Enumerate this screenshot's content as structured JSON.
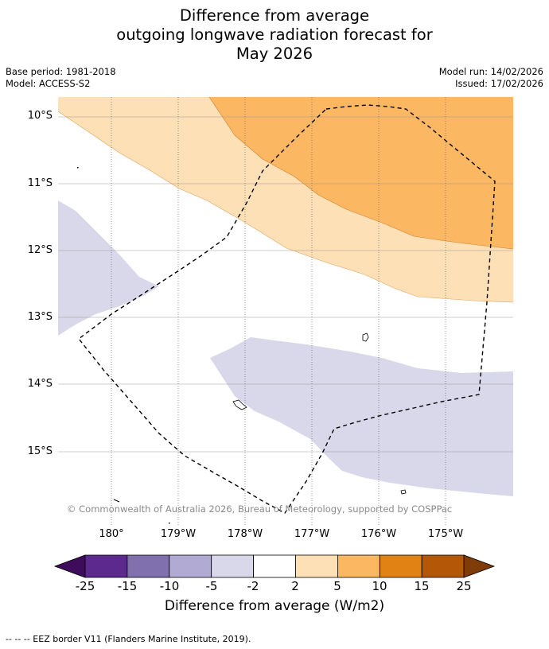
{
  "title": {
    "line1": "Difference from average",
    "line2": "outgoing longwave radiation forecast for",
    "line3": "May 2026"
  },
  "meta": {
    "base_period": "Base period: 1981-2018",
    "model": "Model: ACCESS-S2",
    "model_run": "Model run: 14/02/2026",
    "issued": "Issued: 17/02/2026"
  },
  "map": {
    "lat_labels": [
      "10°S",
      "11°S",
      "12°S",
      "13°S",
      "14°S",
      "15°S"
    ],
    "lon_labels": [
      "180°",
      "179°W",
      "178°W",
      "177°W",
      "176°W",
      "175°W"
    ],
    "copyright": "© Commonwealth of Australia 2026, Bureau of Meteorology, supported by COSPPac"
  },
  "colorbar": {
    "tick_labels": [
      "-25",
      "-15",
      "-10",
      "-5",
      "-2",
      "2",
      "5",
      "10",
      "15",
      "25"
    ],
    "label": "Difference from average (W/m2)",
    "colors": [
      "#3f0c5c",
      "#5c2a8f",
      "#8070ad",
      "#b1aad3",
      "#d8d8ea",
      "#ffffff",
      "#fde0b6",
      "#fbb762",
      "#e08214",
      "#b35806",
      "#7f3b08"
    ]
  },
  "footer": "-- -- -- EEZ border V11 (Flanders Marine Institute, 2019)."
}
